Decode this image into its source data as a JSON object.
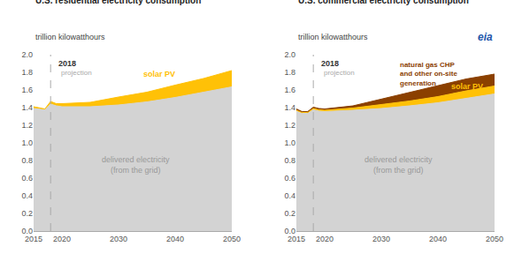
{
  "chart_data": [
    {
      "type": "area",
      "title": "U.S. residential electricity consumption",
      "subtitle": "trillion kilowatthours",
      "x": [
        2015,
        2016,
        2017,
        2018,
        2019,
        2020,
        2025,
        2030,
        2035,
        2040,
        2045,
        2050
      ],
      "xlim": [
        2015,
        2050
      ],
      "ylim": [
        0.0,
        2.0
      ],
      "xticks": [
        2015,
        2020,
        2030,
        2040,
        2050
      ],
      "yticks": [
        {
          "value": 0.0,
          "label": "0.0"
        },
        0.2,
        0.4,
        0.6,
        0.8,
        {
          "value": 1.0,
          "label": "1.0"
        },
        1.2,
        1.4,
        1.6,
        1.8,
        {
          "value": 2.0,
          "label": "2.0"
        }
      ],
      "grid": false,
      "stacked": false,
      "projection_year": 2018,
      "annotations": [
        "2018",
        "projection",
        "solar PV",
        "delivered electricity\n(from the grid)"
      ],
      "series": [
        {
          "color": "#d3d3d3",
          "values": [
            1.39,
            1.38,
            1.375,
            1.44,
            1.42,
            1.41,
            1.41,
            1.43,
            1.465,
            1.515,
            1.575,
            1.635
          ]
        },
        {
          "color": "#FFC107",
          "values": [
            1.41,
            1.4,
            1.385,
            1.47,
            1.445,
            1.445,
            1.46,
            1.52,
            1.575,
            1.655,
            1.73,
            1.82
          ]
        }
      ]
    },
    {
      "type": "area",
      "title": "U.S. commercial electricity consumption",
      "subtitle": "trillion kilowatthours",
      "x": [
        2015,
        2016,
        2017,
        2018,
        2019,
        2020,
        2025,
        2030,
        2035,
        2040,
        2045,
        2050
      ],
      "xlim": [
        2015,
        2050
      ],
      "ylim": [
        0.0,
        2.0
      ],
      "xticks": [
        2015,
        2020,
        2030,
        2040,
        2050
      ],
      "yticks": [
        {
          "value": 0.0,
          "label": "0.0"
        },
        0.2,
        0.4,
        0.6,
        0.8,
        {
          "value": 1.0,
          "label": "1.0"
        },
        1.2,
        1.4,
        1.6,
        1.8,
        {
          "value": 2.0,
          "label": "2.0"
        }
      ],
      "grid": false,
      "stacked": false,
      "projection_year": 2018,
      "annotations": [
        "2018",
        "projection",
        "natural gas CHP\nand other on-site\ngeneration",
        "solar PV",
        "delivered electricity\n(from the grid)",
        "eia"
      ],
      "series": [
        {
          "color": "#d3d3d3",
          "values": [
            1.36,
            1.335,
            1.335,
            1.375,
            1.36,
            1.355,
            1.37,
            1.39,
            1.42,
            1.455,
            1.505,
            1.555
          ]
        },
        {
          "color": "#FFC107",
          "values": [
            1.37,
            1.345,
            1.345,
            1.39,
            1.375,
            1.37,
            1.395,
            1.435,
            1.475,
            1.525,
            1.59,
            1.645
          ]
        },
        {
          "color": "#8B4000",
          "values": [
            1.385,
            1.355,
            1.355,
            1.405,
            1.39,
            1.385,
            1.42,
            1.495,
            1.575,
            1.65,
            1.725,
            1.78
          ]
        }
      ]
    }
  ]
}
